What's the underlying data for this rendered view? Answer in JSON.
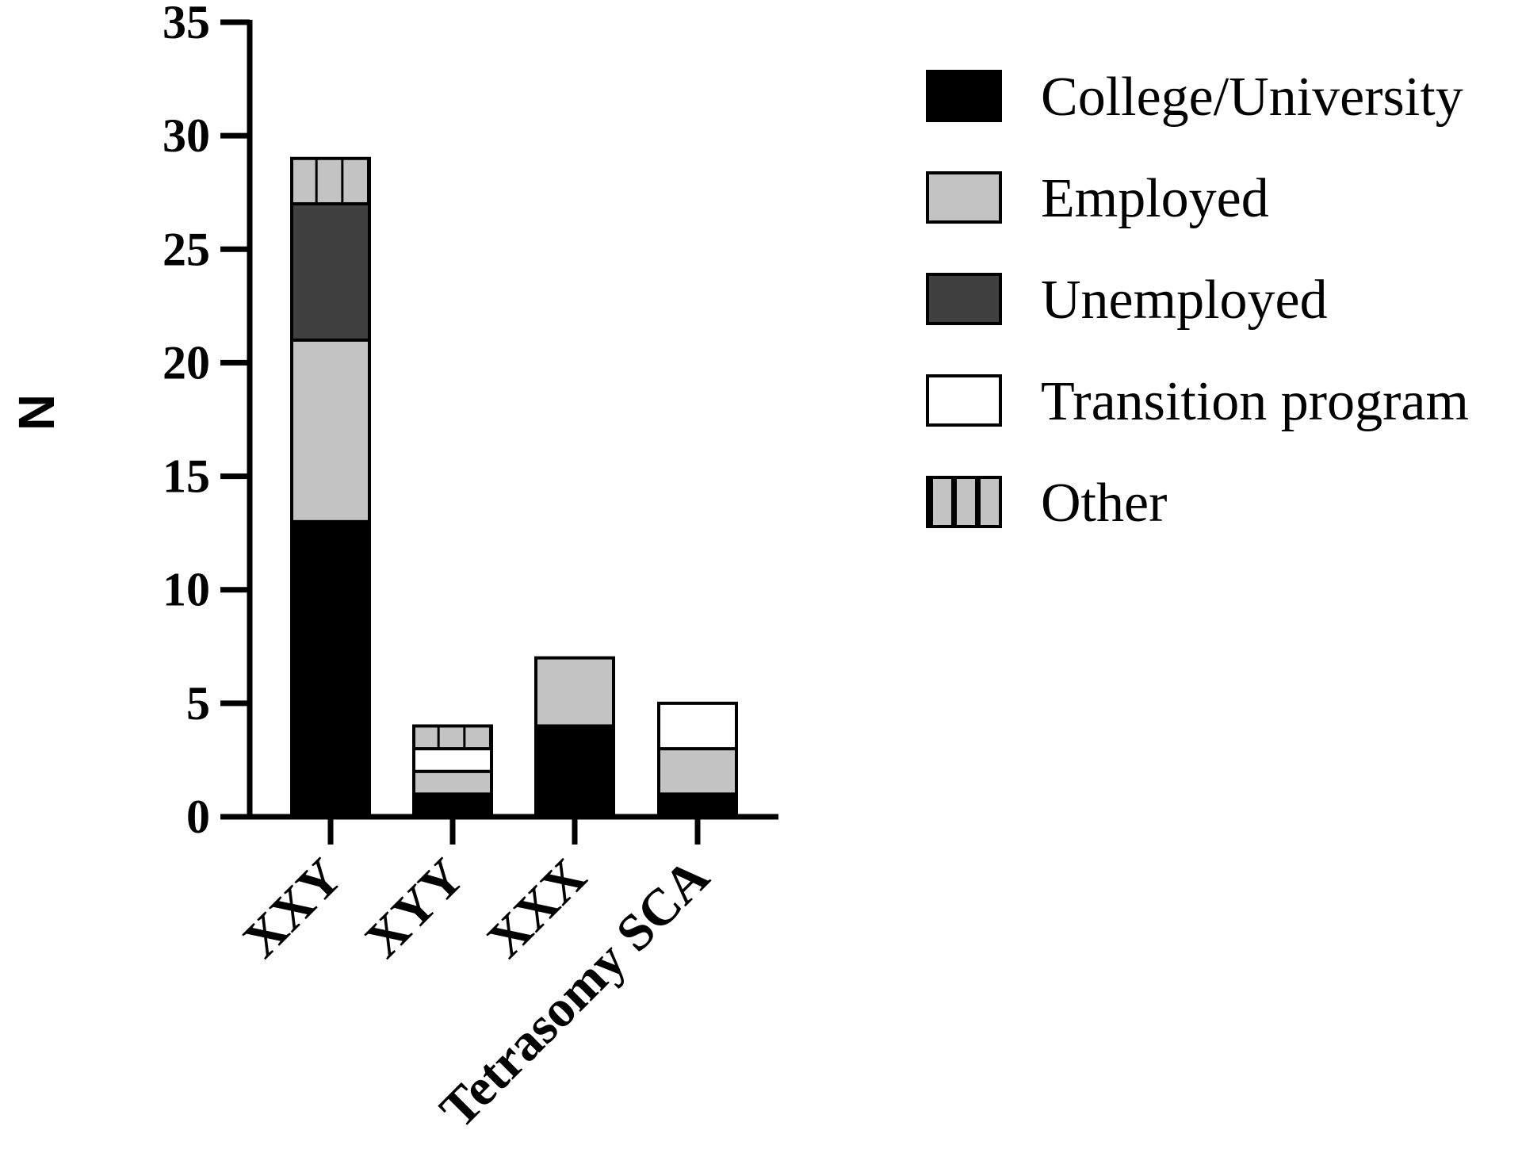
{
  "chart_data": {
    "type": "bar",
    "stacked": true,
    "ylabel": "N",
    "xlabel": "",
    "ylim": [
      0,
      35
    ],
    "yticks": [
      0,
      5,
      10,
      15,
      20,
      25,
      30,
      35
    ],
    "categories": [
      "XXY",
      "XYY",
      "XXX",
      "Tetrasomy SCA"
    ],
    "series": [
      {
        "name": "College/University",
        "values": [
          13,
          1,
          4,
          1
        ],
        "color": "#000000",
        "pattern": "solid"
      },
      {
        "name": "Employed",
        "values": [
          8,
          1,
          3,
          2
        ],
        "color": "#c3c3c3",
        "pattern": "solid"
      },
      {
        "name": "Unemployed",
        "values": [
          6,
          0,
          0,
          0
        ],
        "color": "#404040",
        "pattern": "solid"
      },
      {
        "name": "Transition program",
        "values": [
          0,
          1,
          0,
          2
        ],
        "color": "#ffffff",
        "pattern": "solid"
      },
      {
        "name": "Other",
        "values": [
          2,
          1,
          0,
          0
        ],
        "color": "#c3c3c3",
        "pattern": "vertical-stripes"
      }
    ],
    "legend_position": "top-right",
    "grid": false
  }
}
